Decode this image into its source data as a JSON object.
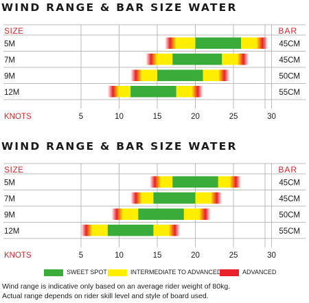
{
  "chart_data": [
    {
      "type": "range-bar",
      "title": "WIND RANGE & BAR SIZE WATER",
      "row_header": "SIZE",
      "bar_header": "BAR",
      "xlabel": "KNOTS",
      "xticks": [
        5,
        10,
        15,
        20,
        25,
        30
      ],
      "xlim": [
        2,
        32
      ],
      "grid": true,
      "rows": [
        {
          "size": "5M",
          "bar": "45CM",
          "advanced_low": [
            16,
            17.5
          ],
          "intermediate_low": [
            17.5,
            20
          ],
          "sweet_spot": [
            20,
            26
          ],
          "intermediate_high": [
            26,
            28
          ],
          "advanced_high": [
            28,
            29.5
          ]
        },
        {
          "size": "7M",
          "bar": "45CM",
          "advanced_low": [
            13.5,
            15
          ],
          "intermediate_low": [
            15,
            17
          ],
          "sweet_spot": [
            17,
            23.5
          ],
          "intermediate_high": [
            23.5,
            25.5
          ],
          "advanced_high": [
            25.5,
            27
          ]
        },
        {
          "size": "9M",
          "bar": "50CM",
          "advanced_low": [
            11.5,
            13
          ],
          "intermediate_low": [
            13,
            15
          ],
          "sweet_spot": [
            15,
            21
          ],
          "intermediate_high": [
            21,
            23
          ],
          "advanced_high": [
            23,
            24.5
          ]
        },
        {
          "size": "12M",
          "bar": "55CM",
          "advanced_low": [
            8.5,
            10
          ],
          "intermediate_low": [
            10,
            11.5
          ],
          "sweet_spot": [
            11.5,
            17.5
          ],
          "intermediate_high": [
            17.5,
            19.5
          ],
          "advanced_high": [
            19.5,
            21
          ]
        }
      ]
    },
    {
      "type": "range-bar",
      "title": "WIND RANGE & BAR SIZE WATER",
      "row_header": "SIZE",
      "bar_header": "BAR",
      "xlabel": "KNOTS",
      "xticks": [
        5,
        10,
        15,
        20,
        25,
        30
      ],
      "xlim": [
        2,
        32
      ],
      "grid": true,
      "rows": [
        {
          "size": "5M",
          "bar": "45CM",
          "advanced_low": [
            14,
            15.5
          ],
          "intermediate_low": [
            15.5,
            17
          ],
          "sweet_spot": [
            17,
            23
          ],
          "intermediate_high": [
            23,
            24.5
          ],
          "advanced_high": [
            24.5,
            26
          ]
        },
        {
          "size": "7M",
          "bar": "45CM",
          "advanced_low": [
            11.5,
            13
          ],
          "intermediate_low": [
            13,
            14.5
          ],
          "sweet_spot": [
            14.5,
            20
          ],
          "intermediate_high": [
            20,
            22
          ],
          "advanced_high": [
            22,
            23.5
          ]
        },
        {
          "size": "9M",
          "bar": "50CM",
          "advanced_low": [
            9,
            10.5
          ],
          "intermediate_low": [
            10.5,
            12.5
          ],
          "sweet_spot": [
            12.5,
            18.5
          ],
          "intermediate_high": [
            18.5,
            20.5
          ],
          "advanced_high": [
            20.5,
            22
          ]
        },
        {
          "size": "12M",
          "bar": "55CM",
          "advanced_low": [
            5,
            6.5
          ],
          "intermediate_low": [
            6.5,
            8.5
          ],
          "sweet_spot": [
            8.5,
            14.5
          ],
          "intermediate_high": [
            14.5,
            16.5
          ],
          "advanced_high": [
            16.5,
            18
          ]
        }
      ]
    }
  ],
  "legend": {
    "sweet_spot": {
      "label": "SWEET SPOT",
      "color": "#3aac3a"
    },
    "intermediate": {
      "label": "INTERMEDIATE TO ADVANCED",
      "color": "#ffee00"
    },
    "advanced": {
      "label": "ADVANCED",
      "color": "#e8202a"
    }
  },
  "colors": {
    "header_red": "#d9222a",
    "grid": "#b8b8b8",
    "text": "#1a1a1a"
  },
  "footnote": {
    "line1": "Wind range is indicative only based on an average rider weight of 80kg.",
    "line2": "Actual range depends on rider skill level and style of board used."
  }
}
